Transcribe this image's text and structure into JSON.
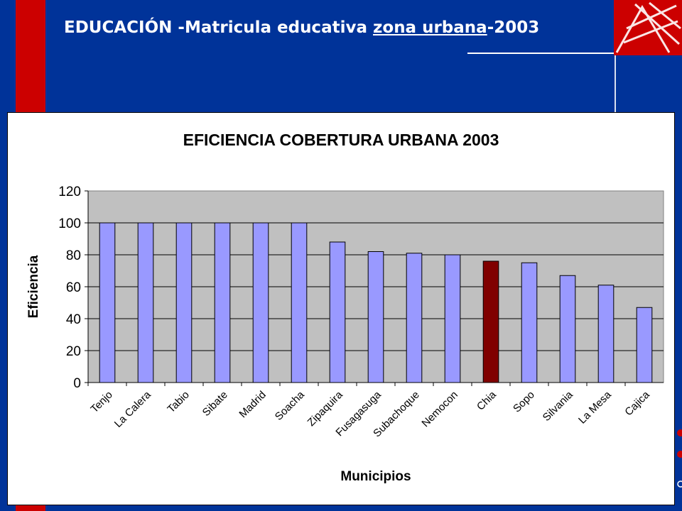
{
  "slide": {
    "title_prefix": "EDUCACIÓN -Matricula educativa ",
    "title_underlined": "zona urbana",
    "title_suffix": "-2003"
  },
  "colors": {
    "background": "#003399",
    "strip": "#cc0000",
    "plot_area": "#c0c0c0",
    "bar": "#9999ff",
    "bar_highlight": "#800000"
  },
  "chart_data": {
    "type": "bar",
    "title": "EFICIENCIA COBERTURA URBANA 2003",
    "xlabel": "Municipios",
    "ylabel": "Eficiencia",
    "ylim": [
      0,
      120
    ],
    "yticks": [
      0,
      20,
      40,
      60,
      80,
      100,
      120
    ],
    "grid": true,
    "highlight": "Chia",
    "categories": [
      "Tenjo",
      "La Calera",
      "Tabio",
      "Sibate",
      "Madrid",
      "Soacha",
      "Zipaquira",
      "Fusagasuga",
      "Subachoque",
      "Nemocon",
      "Chia",
      "Sopo",
      "Silvania",
      "La Mesa",
      "Cajica"
    ],
    "values": [
      100,
      100,
      100,
      100,
      100,
      100,
      88,
      82,
      81,
      80,
      76,
      75,
      67,
      61,
      47
    ]
  }
}
